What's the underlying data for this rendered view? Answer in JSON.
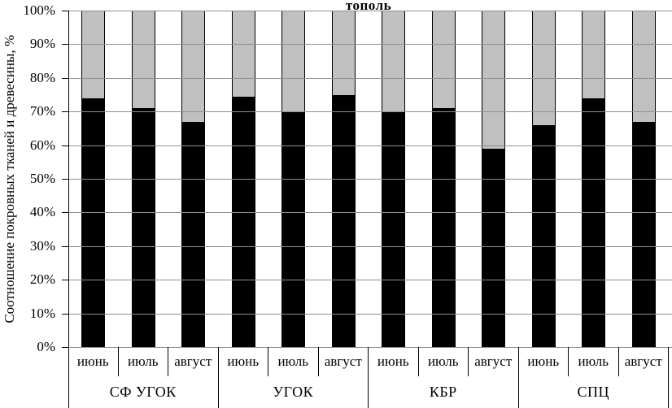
{
  "chart_data": {
    "type": "bar",
    "stacked": true,
    "title": "тополь",
    "ylabel": "Соотношение покровных тканей и древесины, %",
    "ylim": [
      0,
      100
    ],
    "y_tick_step": 10,
    "grid": true,
    "legend": false,
    "groups": [
      "СФ УГОК",
      "УГОК",
      "КБР",
      "СПЦ"
    ],
    "months": [
      "июнь",
      "июль",
      "август"
    ],
    "categories": [
      "СФ УГОК июнь",
      "СФ УГОК июль",
      "СФ УГОК август",
      "УГОК июнь",
      "УГОК июль",
      "УГОК август",
      "КБР июнь",
      "КБР июль",
      "КБР август",
      "СПЦ июнь",
      "СПЦ июль",
      "СПЦ август"
    ],
    "series": [
      {
        "name": "black-segment",
        "color": "#000000",
        "values": [
          74,
          71,
          67,
          74.5,
          70,
          75,
          70,
          71,
          59,
          66,
          74,
          67
        ]
      },
      {
        "name": "gray-segment",
        "color": "#c0c0c0",
        "values": [
          26,
          29,
          33,
          25.5,
          30,
          25,
          30,
          29,
          41,
          34,
          26,
          33
        ]
      }
    ]
  },
  "y_axis": {
    "label": "Соотношение покровных тканей и древесины, %",
    "ticks": [
      "100%",
      "90%",
      "80%",
      "70%",
      "60%",
      "50%",
      "40%",
      "30%",
      "20%",
      "10%",
      "0%"
    ]
  },
  "x_axis": {
    "months": [
      "июнь",
      "июль",
      "август"
    ],
    "groups": [
      "СФ УГОК",
      "УГОК",
      "КБР",
      "СПЦ"
    ]
  },
  "colors": {
    "bar_black": "#000000",
    "bar_gray": "#c0c0c0",
    "gridline": "#8f8f8f",
    "axis": "#000000"
  }
}
